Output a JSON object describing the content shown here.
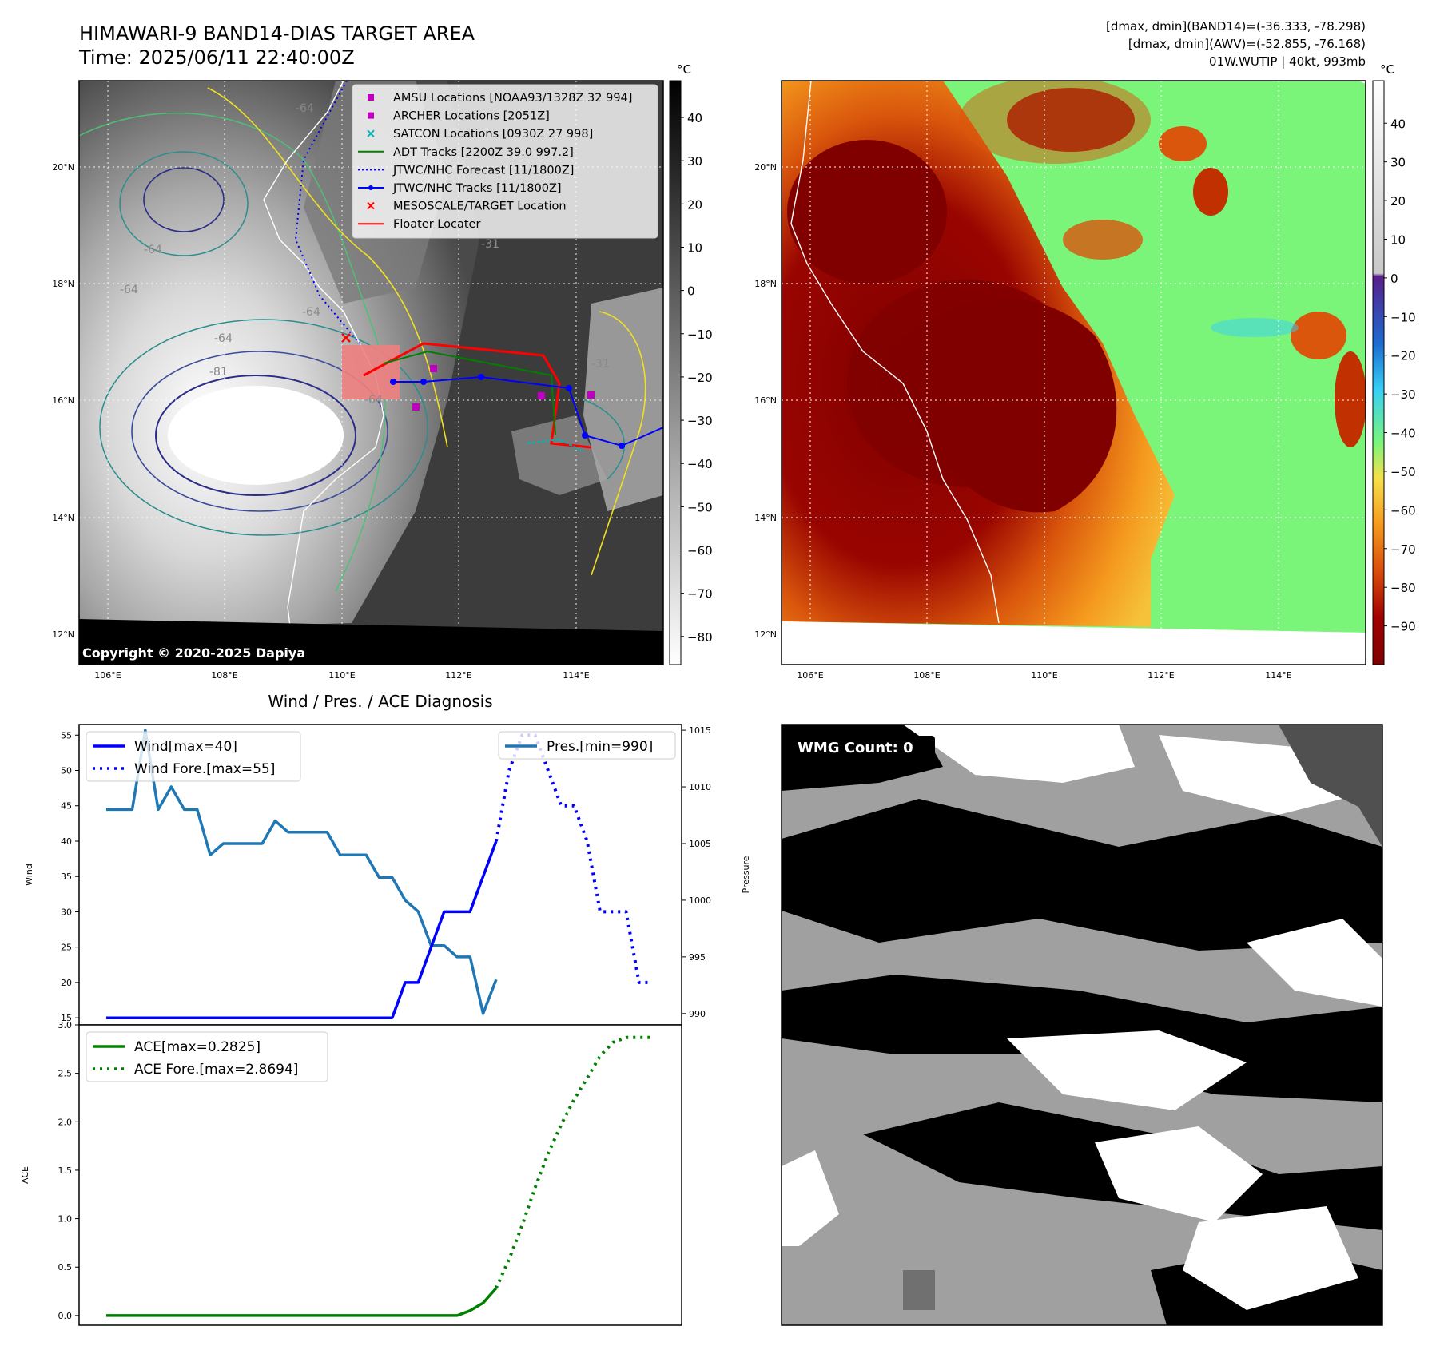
{
  "header": {
    "title_line1": "HIMAWARI-9 BAND14-DIAS TARGET AREA",
    "title_line2": "Time: 2025/06/11 22:40:00Z",
    "info_line1": "[dmax, dmin](BAND14)=(-36.333, -78.298)",
    "info_line2": "[dmax, dmin](AWV)=(-52.855, -76.168)",
    "info_line3": "01W.WUTIP | 40kt, 993mb"
  },
  "map": {
    "x_ticks": [
      "106°E",
      "108°E",
      "110°E",
      "112°E",
      "114°E"
    ],
    "y_ticks": [
      "20°N",
      "18°N",
      "16°N",
      "14°N",
      "12°N"
    ],
    "copyright": "Copyright © 2020-2025 Dapiya",
    "legend": [
      {
        "label": "AMSU Locations [NOAA93/1328Z 32 994]",
        "color": "#c000c0",
        "marker": "square"
      },
      {
        "label": "ARCHER Locations [2051Z]",
        "color": "#c000c0",
        "marker": "square"
      },
      {
        "label": "SATCON Locations [0930Z 27 998]",
        "color": "#00b5b5",
        "marker": "x"
      },
      {
        "label": "ADT Tracks [2200Z 39.0 997.2]",
        "color": "#008000",
        "marker": "line"
      },
      {
        "label": "JTWC/NHC Forecast [11/1800Z]",
        "color": "#0000ff",
        "marker": "dotted"
      },
      {
        "label": "JTWC/NHC Tracks [11/1800Z]",
        "color": "#0000ff",
        "marker": "line-dot"
      },
      {
        "label": "MESOSCALE/TARGET Location",
        "color": "#ff0000",
        "marker": "x"
      },
      {
        "label": "Floater Locater",
        "color": "#ff0000",
        "marker": "line"
      }
    ],
    "contour_labels": [
      "-64",
      "-64",
      "-64",
      "-64",
      "-64",
      "-81",
      "-31",
      "-31",
      "-64"
    ]
  },
  "colorbar_gray": {
    "unit": "°C",
    "ticks": [
      "40",
      "30",
      "20",
      "10",
      "0",
      "−10",
      "−20",
      "−30",
      "−40",
      "−50",
      "−60",
      "−70",
      "−80"
    ]
  },
  "colorbar_color": {
    "unit": "°C",
    "ticks": [
      "40",
      "30",
      "20",
      "10",
      "0",
      "−10",
      "−20",
      "−30",
      "−40",
      "−50",
      "−60",
      "−70",
      "−80",
      "−90"
    ]
  },
  "wmg": {
    "label": "WMG Count: 0"
  },
  "chart_data": [
    {
      "type": "line",
      "title": "Wind / Pres. / ACE Diagnosis",
      "ylabel": "Wind",
      "y2label": "Pressure",
      "ylim": [
        14,
        56.5
      ],
      "y_ticks": [
        "55",
        "50",
        "45",
        "40",
        "35",
        "30",
        "25",
        "20",
        "15"
      ],
      "y2lim": [
        989,
        1015.5
      ],
      "y2_ticks": [
        "1015",
        "1010",
        "1005",
        "1000",
        "995",
        "990"
      ],
      "x": [
        0,
        1,
        2,
        3,
        4,
        5,
        6,
        7,
        8,
        9,
        10,
        11,
        12,
        13,
        14,
        15,
        16,
        17,
        18,
        19,
        20,
        21,
        22,
        23,
        24,
        25,
        26,
        27,
        28,
        29,
        30,
        31,
        32,
        33,
        34,
        35,
        36,
        37,
        38,
        39,
        40,
        41,
        42
      ],
      "series": [
        {
          "name": "Wind[max=40]",
          "color": "#0000ff",
          "style": "solid",
          "x": [
            0,
            22,
            23,
            24,
            25,
            26,
            27,
            28,
            29,
            30
          ],
          "values": [
            15,
            15,
            20,
            20,
            25,
            30,
            30,
            30,
            35,
            40
          ]
        },
        {
          "name": "Wind Fore.[max=55]",
          "color": "#0000ff",
          "style": "dotted",
          "x": [
            30,
            31,
            32,
            33,
            34,
            35,
            36,
            37,
            38,
            39,
            40,
            41,
            42
          ],
          "values": [
            40,
            50,
            55,
            55,
            50,
            45,
            45,
            40,
            30,
            30,
            30,
            20,
            20
          ]
        },
        {
          "name": "Pres.[min=990]",
          "color": "#1f77b4",
          "style": "solid",
          "x": [
            0,
            1,
            2,
            3,
            4,
            5,
            6,
            7,
            8,
            9,
            10,
            11,
            12,
            13,
            14,
            15,
            16,
            17,
            18,
            19,
            20,
            21,
            22,
            23,
            24,
            25,
            26,
            27,
            28,
            29,
            30
          ],
          "values": [
            1008,
            1008,
            1008,
            1015,
            1008,
            1010,
            1008,
            1008,
            1004,
            1005,
            1005,
            1005,
            1005,
            1007,
            1006,
            1006,
            1006,
            1006,
            1004,
            1004,
            1004,
            1002,
            1002,
            1000,
            999,
            996,
            996,
            995,
            995,
            990,
            993
          ]
        }
      ]
    },
    {
      "type": "line",
      "ylabel": "ACE",
      "ylim": [
        -0.1,
        3.0
      ],
      "y_ticks": [
        "3.0",
        "2.5",
        "2.0",
        "1.5",
        "1.0",
        "0.5",
        "0.0"
      ],
      "series": [
        {
          "name": "ACE[max=0.2825]",
          "color": "#008000",
          "style": "solid",
          "x": [
            0,
            26,
            27,
            28,
            29,
            30
          ],
          "values": [
            0,
            0,
            0,
            0.05,
            0.13,
            0.2825
          ]
        },
        {
          "name": "ACE Fore.[max=2.8694]",
          "color": "#008000",
          "style": "dotted",
          "x": [
            30,
            31,
            32,
            33,
            34,
            35,
            36,
            37,
            38,
            39,
            40,
            41,
            42
          ],
          "values": [
            0.2825,
            0.58,
            0.93,
            1.32,
            1.67,
            1.97,
            2.23,
            2.45,
            2.68,
            2.82,
            2.8694,
            2.8694,
            2.8694
          ]
        }
      ]
    }
  ]
}
